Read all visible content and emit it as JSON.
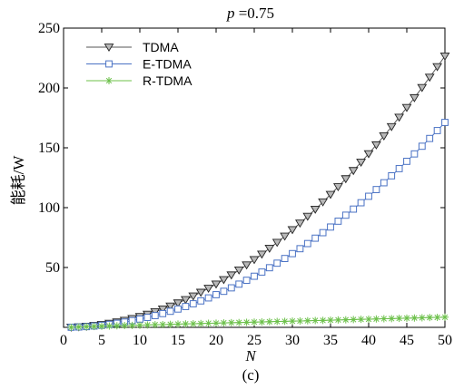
{
  "chart_data": {
    "type": "line",
    "title_var": "p",
    "title_value": "=0.75",
    "xlabel": "N",
    "ylabel": "能耗/W",
    "caption": "(c)",
    "xlim": [
      0,
      50
    ],
    "ylim": [
      0,
      250
    ],
    "xticks": [
      0,
      5,
      10,
      15,
      20,
      25,
      30,
      35,
      40,
      45,
      50
    ],
    "yticks": [
      50,
      100,
      150,
      200,
      250
    ],
    "grid": false,
    "legend_position": "top-left",
    "x": [
      1,
      2,
      3,
      4,
      5,
      6,
      7,
      8,
      9,
      10,
      11,
      12,
      13,
      14,
      15,
      16,
      17,
      18,
      19,
      20,
      21,
      22,
      23,
      24,
      25,
      26,
      27,
      28,
      29,
      30,
      31,
      32,
      33,
      34,
      35,
      36,
      37,
      38,
      39,
      40,
      41,
      42,
      43,
      44,
      45,
      46,
      47,
      48,
      49,
      50
    ],
    "series": [
      {
        "name": "TDMA",
        "marker": "triangle-down",
        "color": "#555555",
        "values": [
          0.1,
          0.4,
          0.8,
          1.5,
          2.3,
          3.3,
          4.4,
          5.8,
          7.3,
          9.0,
          10.9,
          13.0,
          15.2,
          17.7,
          20.3,
          23.1,
          26.1,
          29.2,
          32.6,
          36.1,
          39.8,
          43.7,
          47.8,
          52.1,
          56.5,
          61.1,
          66.0,
          70.9,
          76.1,
          81.5,
          87.0,
          92.7,
          98.6,
          104.7,
          111.0,
          117.4,
          124.1,
          130.9,
          137.9,
          145.0,
          152.4,
          159.9,
          167.6,
          175.5,
          183.6,
          191.8,
          200.3,
          208.9,
          217.7,
          226.6
        ]
      },
      {
        "name": "E-TDMA",
        "marker": "square",
        "color": "#4a72c4",
        "values": [
          0.1,
          0.3,
          0.6,
          1.1,
          1.7,
          2.5,
          3.4,
          4.4,
          5.6,
          6.9,
          8.3,
          9.8,
          11.5,
          13.4,
          15.3,
          17.4,
          19.7,
          22.1,
          24.6,
          27.3,
          30.1,
          33.0,
          36.1,
          39.3,
          42.7,
          46.2,
          49.8,
          53.6,
          57.5,
          61.6,
          65.7,
          70.0,
          74.5,
          79.1,
          83.8,
          88.7,
          93.7,
          98.8,
          104.1,
          109.5,
          115.1,
          120.8,
          126.6,
          132.6,
          138.7,
          144.9,
          151.3,
          157.8,
          164.4,
          171.2
        ]
      },
      {
        "name": "R-TDMA",
        "marker": "asterisk",
        "color": "#6cc04a",
        "values": [
          0.0,
          0.3,
          0.5,
          0.7,
          0.9,
          1.1,
          1.3,
          1.5,
          1.6,
          1.8,
          2.0,
          2.2,
          2.3,
          2.5,
          2.7,
          2.9,
          3.0,
          3.2,
          3.4,
          3.5,
          3.7,
          3.9,
          4.0,
          4.2,
          4.4,
          4.5,
          4.7,
          4.9,
          5.0,
          5.2,
          5.3,
          5.5,
          5.7,
          5.8,
          6.0,
          6.2,
          6.3,
          6.5,
          6.7,
          6.8,
          7.0,
          7.2,
          7.3,
          7.5,
          7.7,
          7.8,
          8.0,
          8.2,
          8.3,
          8.5
        ]
      }
    ]
  }
}
